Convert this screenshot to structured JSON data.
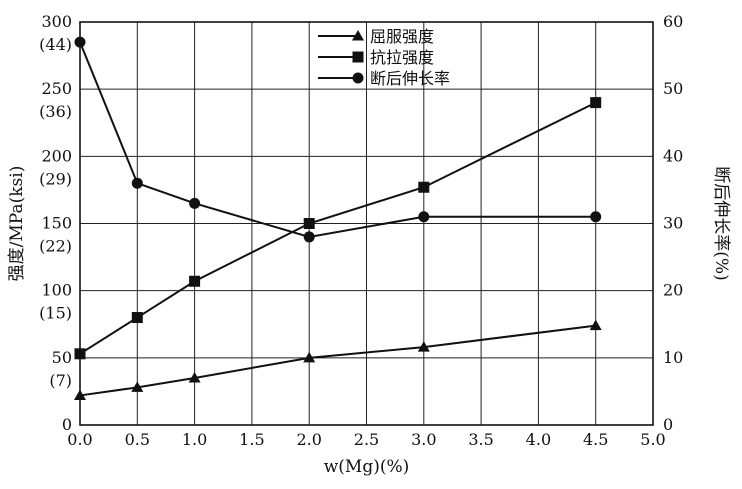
{
  "chart_data": {
    "type": "line",
    "xlabel": "w(Mg)(%)",
    "ylabel_left": "强度/MPa(ksi)",
    "ylabel_right": "断后伸长率(%)",
    "xlim": [
      0,
      5
    ],
    "ylim_left": [
      0,
      300
    ],
    "ylim_right": [
      0,
      60
    ],
    "x_ticks": [
      "0.0",
      "0.5",
      "1.0",
      "1.5",
      "2.0",
      "2.5",
      "3.0",
      "3.5",
      "4.0",
      "4.5",
      "5.0"
    ],
    "y_left_ticks": [
      {
        "value": 0,
        "label": "0",
        "sub": ""
      },
      {
        "value": 50,
        "label": "50",
        "sub": "(7)"
      },
      {
        "value": 100,
        "label": "100",
        "sub": "(15)"
      },
      {
        "value": 150,
        "label": "150",
        "sub": "(22)"
      },
      {
        "value": 200,
        "label": "200",
        "sub": "(29)"
      },
      {
        "value": 250,
        "label": "250",
        "sub": "(36)"
      },
      {
        "value": 300,
        "label": "300",
        "sub": "(44)"
      }
    ],
    "y_right_ticks": [
      "0",
      "10",
      "20",
      "30",
      "40",
      "50",
      "60"
    ],
    "grid": true,
    "legend_position": "top-center",
    "series": [
      {
        "name": "屈服强度",
        "marker": "triangle",
        "axis": "left",
        "x": [
          0.0,
          0.5,
          1.0,
          2.0,
          3.0,
          4.5
        ],
        "y": [
          22,
          28,
          35,
          50,
          58,
          74
        ]
      },
      {
        "name": "抗拉强度",
        "marker": "square",
        "axis": "left",
        "x": [
          0.0,
          0.5,
          1.0,
          2.0,
          3.0,
          4.5
        ],
        "y": [
          53,
          80,
          107,
          150,
          177,
          240
        ]
      },
      {
        "name": "断后伸长率",
        "marker": "circle",
        "axis": "right",
        "x": [
          0.0,
          0.5,
          1.0,
          2.0,
          3.0,
          4.5
        ],
        "y": [
          57,
          36,
          33,
          28,
          31,
          31
        ]
      }
    ]
  }
}
